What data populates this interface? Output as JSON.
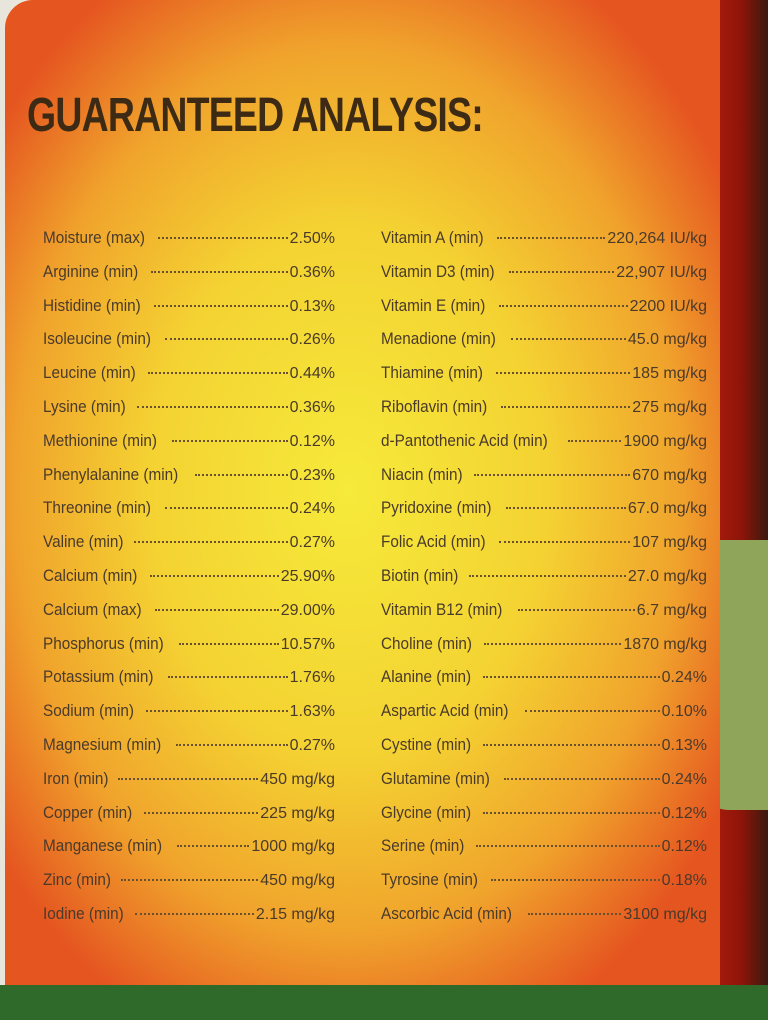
{
  "title": "GUARANTEED ANALYSIS:",
  "left_column": [
    {
      "name": "Moisture (max)",
      "value": "2.50%"
    },
    {
      "name": "Arginine (min)",
      "value": "0.36%"
    },
    {
      "name": "Histidine (min)",
      "value": "0.13%"
    },
    {
      "name": "Isoleucine (min)",
      "value": "0.26%"
    },
    {
      "name": "Leucine (min)",
      "value": "0.44%"
    },
    {
      "name": "Lysine (min)",
      "value": "0.36%"
    },
    {
      "name": "Methionine (min)",
      "value": "0.12%"
    },
    {
      "name": "Phenylalanine (min)",
      "value": "0.23%"
    },
    {
      "name": "Threonine (min)",
      "value": "0.24%"
    },
    {
      "name": "Valine (min)",
      "value": "0.27%"
    },
    {
      "name": "Calcium (min)",
      "value": "25.90%"
    },
    {
      "name": "Calcium (max)",
      "value": "29.00%"
    },
    {
      "name": "Phosphorus (min)",
      "value": "10.57%"
    },
    {
      "name": "Potassium (min)",
      "value": "1.76%"
    },
    {
      "name": "Sodium (min)",
      "value": "1.63%"
    },
    {
      "name": "Magnesium (min)",
      "value": "0.27%"
    },
    {
      "name": "Iron (min)",
      "value": "450 mg/kg"
    },
    {
      "name": "Copper (min)",
      "value": "225 mg/kg"
    },
    {
      "name": "Manganese (min)",
      "value": "1000 mg/kg"
    },
    {
      "name": "Zinc (min)",
      "value": "450 mg/kg"
    },
    {
      "name": "Iodine (min)",
      "value": "2.15 mg/kg"
    }
  ],
  "right_column": [
    {
      "name": "Vitamin A (min)",
      "value": "220,264 IU/kg"
    },
    {
      "name": "Vitamin D3 (min)",
      "value": "22,907 IU/kg"
    },
    {
      "name": "Vitamin E (min)",
      "value": "2200 IU/kg"
    },
    {
      "name": "Menadione (min)",
      "value": "45.0 mg/kg"
    },
    {
      "name": "Thiamine (min)",
      "value": "185 mg/kg"
    },
    {
      "name": "Riboflavin (min)",
      "value": "275 mg/kg"
    },
    {
      "name": "d-Pantothenic Acid (min)",
      "value": "1900 mg/kg"
    },
    {
      "name": "Niacin (min)",
      "value": "670 mg/kg"
    },
    {
      "name": "Pyridoxine (min)",
      "value": "67.0 mg/kg"
    },
    {
      "name": "Folic Acid (min)",
      "value": "107 mg/kg"
    },
    {
      "name": "Biotin (min)",
      "value": "27.0 mg/kg"
    },
    {
      "name": "Vitamin B12 (min)",
      "value": "6.7 mg/kg"
    },
    {
      "name": "Choline (min)",
      "value": "1870 mg/kg"
    },
    {
      "name": "Alanine (min)",
      "value": "0.24%"
    },
    {
      "name": "Aspartic Acid (min)",
      "value": "0.10%"
    },
    {
      "name": "Cystine (min)",
      "value": "0.13%"
    },
    {
      "name": "Glutamine (min)",
      "value": "0.24%"
    },
    {
      "name": "Glycine (min)",
      "value": "0.12%"
    },
    {
      "name": "Serine (min)",
      "value": "0.12%"
    },
    {
      "name": "Tyrosine (min)",
      "value": "0.18%"
    },
    {
      "name": "Ascorbic Acid (min)",
      "value": "3100 mg/kg"
    }
  ]
}
